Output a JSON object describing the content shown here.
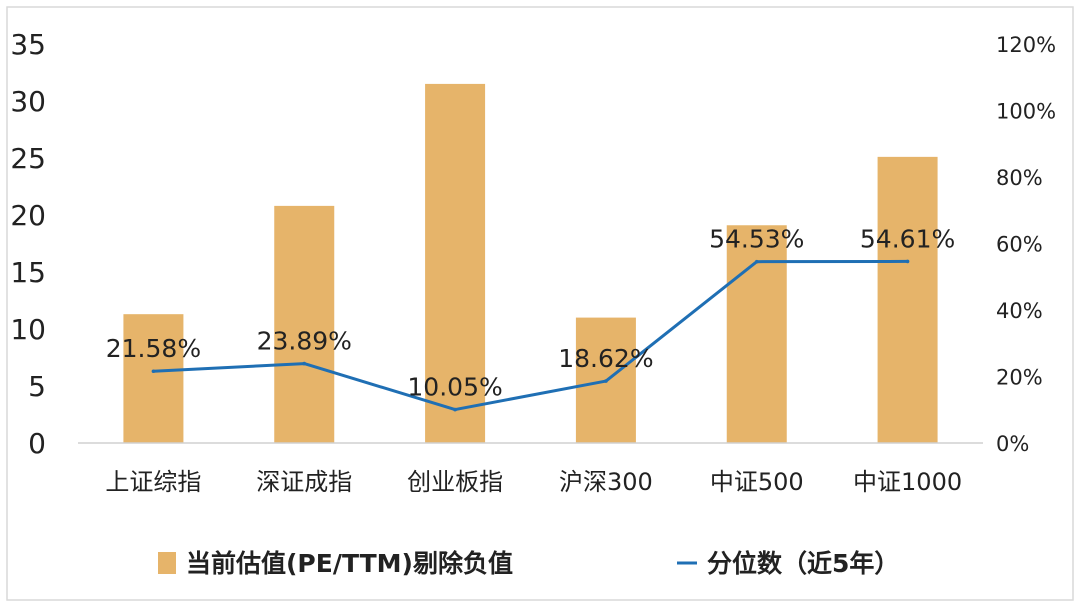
{
  "chart_data": {
    "type": "bar",
    "categories": [
      "上证综指",
      "深证成指",
      "创业板指",
      "沪深300",
      "中证500",
      "中证1000"
    ],
    "series": [
      {
        "name": "当前估值(PE/TTM)剔除负值",
        "axis": "left",
        "type": "bar",
        "color": "#E6B46A",
        "values": [
          11.3,
          20.8,
          31.5,
          11.0,
          19.1,
          25.1
        ]
      },
      {
        "name": "分位数（近5年）",
        "axis": "right",
        "type": "line",
        "color": "#1F6FB4",
        "values": [
          21.58,
          23.89,
          10.05,
          18.62,
          54.53,
          54.61
        ],
        "data_labels": [
          "21.58%",
          "23.89%",
          "10.05%",
          "18.62%",
          "54.53%",
          "54.61%"
        ]
      }
    ],
    "y_left": {
      "ylim": [
        0,
        35
      ],
      "ticks": [
        "0",
        "5",
        "10",
        "15",
        "20",
        "25",
        "30",
        "35"
      ]
    },
    "y_right": {
      "ylim": [
        0,
        120
      ],
      "ticks": [
        "0%",
        "20%",
        "40%",
        "60%",
        "80%",
        "100%",
        "120%"
      ]
    },
    "grid": false,
    "legend_position": "bottom"
  }
}
